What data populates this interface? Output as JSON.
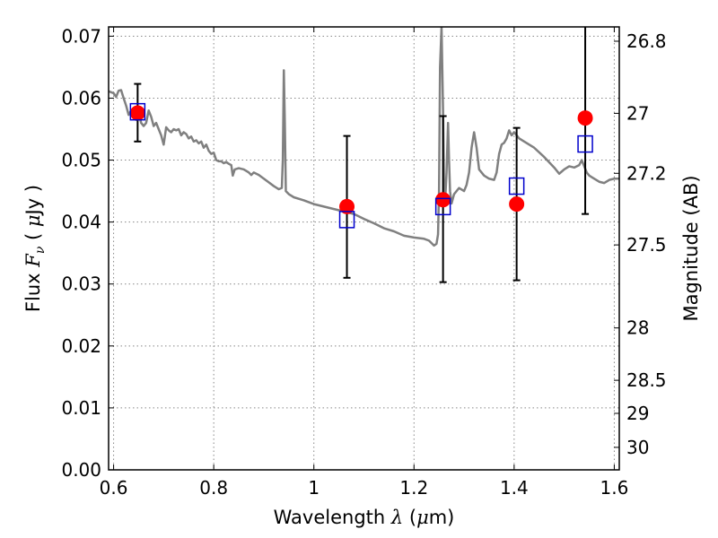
{
  "chart_data": {
    "type": "scatter",
    "xlabel": {
      "prefix": "Wavelength ",
      "symbol": "λ",
      "unit_open": " (",
      "unit_mu": "μ",
      "unit_rest": "m)"
    },
    "ylabel": {
      "prefix": "Flux ",
      "symbol": "F",
      "subscript": "ν",
      "unit_open": " ( ",
      "unit_mu": "μ",
      "unit_rest": "Jy )"
    },
    "y2label": "Magnitude (AB)",
    "xlim": [
      0.59,
      1.61
    ],
    "ylim": [
      0.0,
      0.0715
    ],
    "grid": true,
    "x_ticks": [
      0.6,
      0.8,
      1.0,
      1.2,
      1.4,
      1.6
    ],
    "x_tick_labels": [
      "0.6",
      "0.8",
      "1",
      "1.2",
      "1.4",
      "1.6"
    ],
    "y_ticks": [
      0.0,
      0.01,
      0.02,
      0.03,
      0.04,
      0.05,
      0.06,
      0.07
    ],
    "y_tick_labels": [
      "0.00",
      "0.01",
      "0.02",
      "0.03",
      "0.04",
      "0.05",
      "0.06",
      "0.07"
    ],
    "y2_ticks": [
      26.8,
      27.0,
      27.2,
      27.5,
      28.0,
      28.5,
      29.0,
      30.0
    ],
    "y2_tick_labels": [
      "26.8",
      "27",
      "27.2",
      "27.5",
      "28",
      "28.5",
      "29",
      "30"
    ],
    "colors": {
      "model": "#808080",
      "observed": "#ff0000",
      "model_phot": "#0000cc",
      "errorbar": "#000000",
      "grid": "#888888"
    },
    "series": [
      {
        "kind": "line",
        "points": [
          [
            0.59,
            0.0611
          ],
          [
            0.6,
            0.0608
          ],
          [
            0.605,
            0.0602
          ],
          [
            0.61,
            0.0612
          ],
          [
            0.615,
            0.0613
          ],
          [
            0.62,
            0.06
          ],
          [
            0.625,
            0.0588
          ],
          [
            0.63,
            0.0573
          ],
          [
            0.635,
            0.058
          ],
          [
            0.64,
            0.0575
          ],
          [
            0.645,
            0.0565
          ],
          [
            0.65,
            0.0578
          ],
          [
            0.655,
            0.056
          ],
          [
            0.66,
            0.0555
          ],
          [
            0.665,
            0.056
          ],
          [
            0.67,
            0.058
          ],
          [
            0.675,
            0.057
          ],
          [
            0.68,
            0.0555
          ],
          [
            0.685,
            0.056
          ],
          [
            0.69,
            0.055
          ],
          [
            0.695,
            0.054
          ],
          [
            0.7,
            0.0525
          ],
          [
            0.705,
            0.0553
          ],
          [
            0.71,
            0.0548
          ],
          [
            0.715,
            0.0545
          ],
          [
            0.72,
            0.055
          ],
          [
            0.725,
            0.0548
          ],
          [
            0.73,
            0.055
          ],
          [
            0.735,
            0.054
          ],
          [
            0.74,
            0.0545
          ],
          [
            0.745,
            0.0542
          ],
          [
            0.75,
            0.0535
          ],
          [
            0.755,
            0.0538
          ],
          [
            0.76,
            0.053
          ],
          [
            0.765,
            0.0532
          ],
          [
            0.77,
            0.0527
          ],
          [
            0.775,
            0.053
          ],
          [
            0.78,
            0.052
          ],
          [
            0.785,
            0.0525
          ],
          [
            0.79,
            0.0515
          ],
          [
            0.795,
            0.051
          ],
          [
            0.8,
            0.0512
          ],
          [
            0.805,
            0.05
          ],
          [
            0.81,
            0.0498
          ],
          [
            0.815,
            0.0498
          ],
          [
            0.82,
            0.0495
          ],
          [
            0.825,
            0.0497
          ],
          [
            0.83,
            0.0494
          ],
          [
            0.835,
            0.0492
          ],
          [
            0.838,
            0.0475
          ],
          [
            0.842,
            0.0485
          ],
          [
            0.85,
            0.0487
          ],
          [
            0.86,
            0.0485
          ],
          [
            0.87,
            0.048
          ],
          [
            0.875,
            0.0476
          ],
          [
            0.88,
            0.048
          ],
          [
            0.89,
            0.0476
          ],
          [
            0.9,
            0.047
          ],
          [
            0.91,
            0.0464
          ],
          [
            0.92,
            0.0458
          ],
          [
            0.93,
            0.0453
          ],
          [
            0.936,
            0.0455
          ],
          [
            0.938,
            0.05
          ],
          [
            0.94,
            0.0645
          ],
          [
            0.942,
            0.056
          ],
          [
            0.944,
            0.045
          ],
          [
            0.95,
            0.0445
          ],
          [
            0.96,
            0.044
          ],
          [
            0.98,
            0.0435
          ],
          [
            1.0,
            0.0429
          ],
          [
            1.02,
            0.0425
          ],
          [
            1.04,
            0.0421
          ],
          [
            1.06,
            0.0417
          ],
          [
            1.08,
            0.0413
          ],
          [
            1.1,
            0.0405
          ],
          [
            1.12,
            0.0398
          ],
          [
            1.14,
            0.039
          ],
          [
            1.16,
            0.0385
          ],
          [
            1.18,
            0.0378
          ],
          [
            1.2,
            0.0375
          ],
          [
            1.22,
            0.0373
          ],
          [
            1.23,
            0.037
          ],
          [
            1.24,
            0.0362
          ],
          [
            1.245,
            0.0365
          ],
          [
            1.248,
            0.038
          ],
          [
            1.25,
            0.045
          ],
          [
            1.252,
            0.065
          ],
          [
            1.255,
            0.0715
          ],
          [
            1.258,
            0.058
          ],
          [
            1.26,
            0.046
          ],
          [
            1.262,
            0.043
          ],
          [
            1.265,
            0.048
          ],
          [
            1.268,
            0.056
          ],
          [
            1.27,
            0.05
          ],
          [
            1.272,
            0.045
          ],
          [
            1.275,
            0.043
          ],
          [
            1.28,
            0.0445
          ],
          [
            1.29,
            0.0455
          ],
          [
            1.3,
            0.045
          ],
          [
            1.305,
            0.046
          ],
          [
            1.31,
            0.048
          ],
          [
            1.315,
            0.052
          ],
          [
            1.32,
            0.0545
          ],
          [
            1.325,
            0.052
          ],
          [
            1.33,
            0.0485
          ],
          [
            1.34,
            0.0475
          ],
          [
            1.35,
            0.047
          ],
          [
            1.36,
            0.0468
          ],
          [
            1.365,
            0.048
          ],
          [
            1.37,
            0.051
          ],
          [
            1.375,
            0.0525
          ],
          [
            1.38,
            0.0528
          ],
          [
            1.385,
            0.0535
          ],
          [
            1.39,
            0.0548
          ],
          [
            1.395,
            0.054
          ],
          [
            1.4,
            0.0545
          ],
          [
            1.41,
            0.0535
          ],
          [
            1.42,
            0.053
          ],
          [
            1.44,
            0.052
          ],
          [
            1.46,
            0.0505
          ],
          [
            1.48,
            0.0488
          ],
          [
            1.49,
            0.0478
          ],
          [
            1.5,
            0.0485
          ],
          [
            1.51,
            0.049
          ],
          [
            1.52,
            0.0488
          ],
          [
            1.53,
            0.0492
          ],
          [
            1.535,
            0.05
          ],
          [
            1.54,
            0.049
          ],
          [
            1.545,
            0.048
          ],
          [
            1.55,
            0.0475
          ],
          [
            1.56,
            0.047
          ],
          [
            1.57,
            0.0465
          ],
          [
            1.58,
            0.0463
          ],
          [
            1.59,
            0.0468
          ],
          [
            1.6,
            0.047
          ],
          [
            1.61,
            0.047
          ]
        ]
      },
      {
        "kind": "circles",
        "x": [
          0.648,
          1.066,
          1.258,
          1.405,
          1.542
        ],
        "y": [
          0.0576,
          0.0425,
          0.0436,
          0.0429,
          0.0568
        ]
      },
      {
        "kind": "squares",
        "x": [
          0.648,
          1.066,
          1.258,
          1.405,
          1.542
        ],
        "y": [
          0.0578,
          0.0404,
          0.0425,
          0.0458,
          0.0526
        ]
      }
    ],
    "errorbars": {
      "x": [
        0.648,
        1.066,
        1.258,
        1.405,
        1.542
      ],
      "low": [
        0.053,
        0.031,
        0.0303,
        0.0306,
        0.0413
      ],
      "high": [
        0.0623,
        0.0539,
        0.0571,
        0.0552,
        0.0715
      ]
    }
  }
}
